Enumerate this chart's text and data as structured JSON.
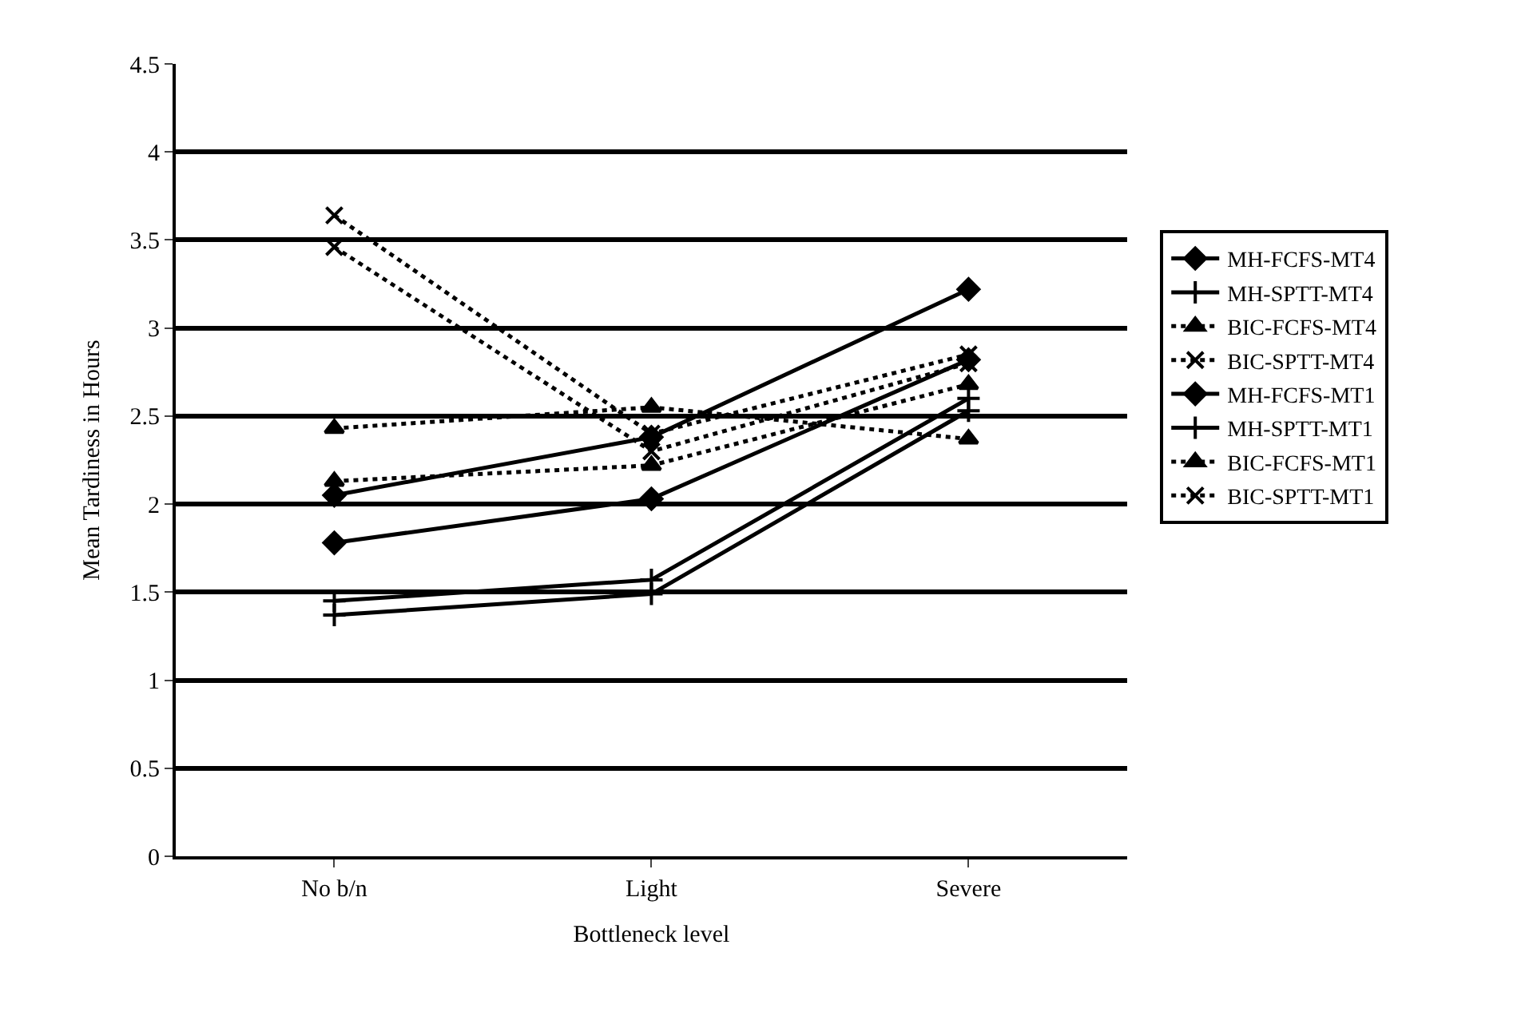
{
  "chart_data": {
    "type": "line",
    "xlabel": "Bottleneck level",
    "ylabel": "Mean Tardiness in Hours",
    "categories": [
      "No b/n",
      "Light",
      "Severe"
    ],
    "ylim": [
      0,
      4.5
    ],
    "yticks": [
      0,
      0.5,
      1,
      1.5,
      2,
      2.5,
      3,
      3.5,
      4,
      4.5
    ],
    "grid": "y",
    "legend": "right",
    "series": [
      {
        "name": "MH-FCFS-MT4",
        "color": "#000000",
        "marker": "diamond",
        "line_style": "solid",
        "values": [
          2.05,
          2.38,
          3.22
        ]
      },
      {
        "name": "MH-SPTT-MT4",
        "color": "#000000",
        "marker": "cross",
        "line_style": "solid",
        "values": [
          1.45,
          1.57,
          2.6
        ]
      },
      {
        "name": "BIC-FCFS-MT4",
        "color": "#000000",
        "marker": "triangle",
        "line_style": "dotted",
        "values": [
          2.43,
          2.55,
          2.37
        ]
      },
      {
        "name": "BIC-SPTT-MT4",
        "color": "#000000",
        "marker": "x",
        "line_style": "dotted",
        "values": [
          3.64,
          2.4,
          2.85
        ]
      },
      {
        "name": "MH-FCFS-MT1",
        "color": "#000000",
        "marker": "diamond",
        "line_style": "solid",
        "values": [
          1.78,
          2.03,
          2.82
        ]
      },
      {
        "name": "MH-SPTT-MT1",
        "color": "#000000",
        "marker": "cross",
        "line_style": "solid",
        "values": [
          1.37,
          1.49,
          2.53
        ]
      },
      {
        "name": "BIC-FCFS-MT1",
        "color": "#000000",
        "marker": "triangle",
        "line_style": "dotted",
        "values": [
          2.13,
          2.22,
          2.68
        ]
      },
      {
        "name": "BIC-SPTT-MT1",
        "color": "#000000",
        "marker": "x",
        "line_style": "dotted",
        "values": [
          3.46,
          2.3,
          2.8
        ]
      }
    ]
  }
}
